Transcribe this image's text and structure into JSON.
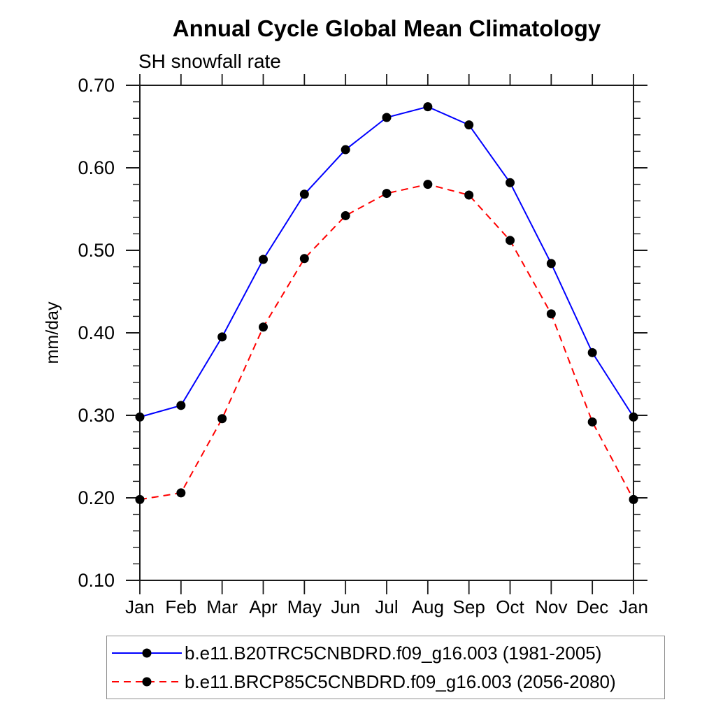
{
  "chart_data": {
    "type": "line",
    "title": "Annual Cycle Global Mean Climatology",
    "subtitle": "SH snowfall rate",
    "ylabel": "mm/day",
    "ylim": [
      0.1,
      0.7
    ],
    "ytick_major": 0.1,
    "ytick_minor": 0.02,
    "ytick_labels": [
      "0.10",
      "0.20",
      "0.30",
      "0.40",
      "0.50",
      "0.60",
      "0.70"
    ],
    "categories": [
      "Jan",
      "Feb",
      "Mar",
      "Apr",
      "May",
      "Jun",
      "Jul",
      "Aug",
      "Sep",
      "Oct",
      "Nov",
      "Dec",
      "Jan"
    ],
    "grid": false,
    "legend_position": "bottom",
    "axis_color": "#1a1a1a",
    "marker_color": "#000000",
    "series": [
      {
        "name": "b.e11.B20TRC5CNBDRD.f09_g16.003 (1981-2005)",
        "color": "#0000ff",
        "style": "solid",
        "marker": "circle",
        "values": [
          0.298,
          0.312,
          0.395,
          0.489,
          0.568,
          0.622,
          0.661,
          0.674,
          0.652,
          0.582,
          0.484,
          0.376,
          0.298
        ]
      },
      {
        "name": "b.e11.BRCP85C5CNBDRD.f09_g16.003 (2056-2080)",
        "color": "#ff0000",
        "style": "dashed",
        "marker": "circle",
        "values": [
          0.198,
          0.206,
          0.296,
          0.407,
          0.49,
          0.542,
          0.569,
          0.58,
          0.567,
          0.512,
          0.423,
          0.292,
          0.198
        ]
      }
    ]
  }
}
